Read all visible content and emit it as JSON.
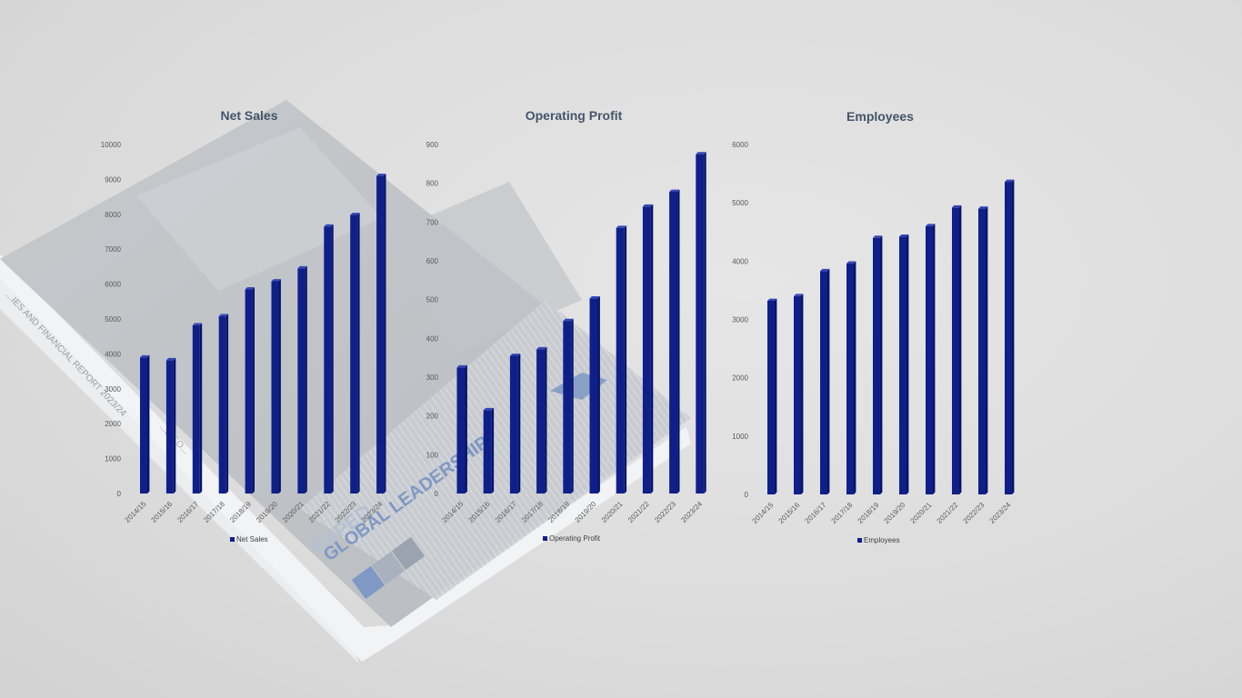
{
  "background": {
    "cover_headline_1": "EXPED",
    "cover_headline_2": "GLOBAL LEADERSHIP",
    "spine_text": "...IES AND FINANCIAL REPORT 2023/24",
    "page_text": "...D CO..."
  },
  "colors": {
    "bar": "#0f1f8a",
    "bar_side": "#071466",
    "bar_top": "#3346b8",
    "title": "#44546a"
  },
  "chart_data": [
    {
      "type": "bar",
      "title": "Net Sales",
      "categories": [
        "2014/15",
        "2015/16",
        "2016/17",
        "2017/18",
        "2018/19",
        "2019/20",
        "2020/21",
        "2021/22",
        "2022/23",
        "2023/24"
      ],
      "series": [
        {
          "name": "Net Sales",
          "values": [
            3900,
            3820,
            4820,
            5080,
            5850,
            6080,
            6450,
            7650,
            7980,
            9100
          ]
        }
      ],
      "yticks": [
        0,
        1000,
        2000,
        3000,
        4000,
        5000,
        6000,
        7000,
        8000,
        9000,
        10000
      ],
      "ylim": [
        0,
        10000
      ],
      "xlabel": "",
      "ylabel": "",
      "grid": false,
      "legend": "bottom"
    },
    {
      "type": "bar",
      "title": "Operating  Profit",
      "categories": [
        "2014/15",
        "2015/16",
        "2016/17",
        "2017/18",
        "2018/19",
        "2019/20",
        "2020/21",
        "2021/22",
        "2022/23",
        "2023/24"
      ],
      "series": [
        {
          "name": "Operating Profit",
          "values": [
            325,
            215,
            355,
            372,
            445,
            503,
            685,
            740,
            778,
            875
          ]
        }
      ],
      "yticks": [
        0,
        100,
        200,
        300,
        400,
        500,
        600,
        700,
        800,
        900
      ],
      "ylim": [
        0,
        900
      ],
      "xlabel": "",
      "ylabel": "",
      "grid": false,
      "legend": "bottom"
    },
    {
      "type": "bar",
      "title": "Employees",
      "categories": [
        "2014/15",
        "2015/16",
        "2016/17",
        "2017/18",
        "2018/19",
        "2019/20",
        "2020/21",
        "2021/22",
        "2022/23",
        "2023/24"
      ],
      "series": [
        {
          "name": "Employees",
          "values": [
            3320,
            3400,
            3830,
            3960,
            4400,
            4420,
            4600,
            4920,
            4900,
            5360
          ]
        }
      ],
      "yticks": [
        0,
        1000,
        2000,
        3000,
        4000,
        5000,
        6000
      ],
      "ylim": [
        0,
        6000
      ],
      "xlabel": "",
      "ylabel": "",
      "grid": false,
      "legend": "bottom"
    }
  ]
}
